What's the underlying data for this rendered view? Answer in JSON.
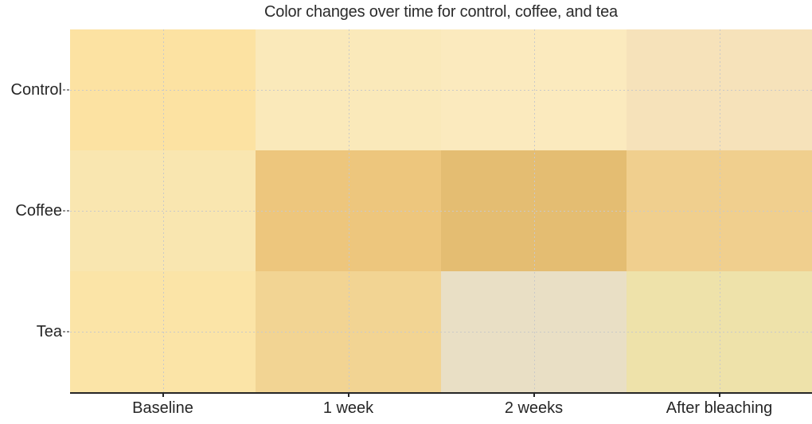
{
  "title": "Color changes over time for control, coffee, and tea",
  "chart_data": {
    "type": "heatmap",
    "rows": [
      "Control",
      "Coffee",
      "Tea"
    ],
    "columns": [
      "Baseline",
      "1 week",
      "2 weeks",
      "After bleaching"
    ],
    "cell_colors": [
      [
        "#fce2a2",
        "#fae9ba",
        "#fbeabe",
        "#f6e2ba"
      ],
      [
        "#f9e6b0",
        "#edc67d",
        "#e4bd72",
        "#f0cf8e"
      ],
      [
        "#fbe4a7",
        "#f2d493",
        "#e9dfc5",
        "#eee2aa"
      ]
    ],
    "cell_meaning": "tooth swatch color observed at each time point (color itself is the datum; no numeric colorbar shown)",
    "legend": "none",
    "grid": "dashed light-gray gridlines at row and column centers",
    "layout": {
      "x_axis_position": "bottom",
      "y_axis_position": "left"
    },
    "colors": {
      "axis_line": "#262626",
      "grid_line": "#c9c9c9",
      "tick_dash": "#8f8f8f",
      "text": "#2b2b2b",
      "background": "#ffffff"
    }
  }
}
